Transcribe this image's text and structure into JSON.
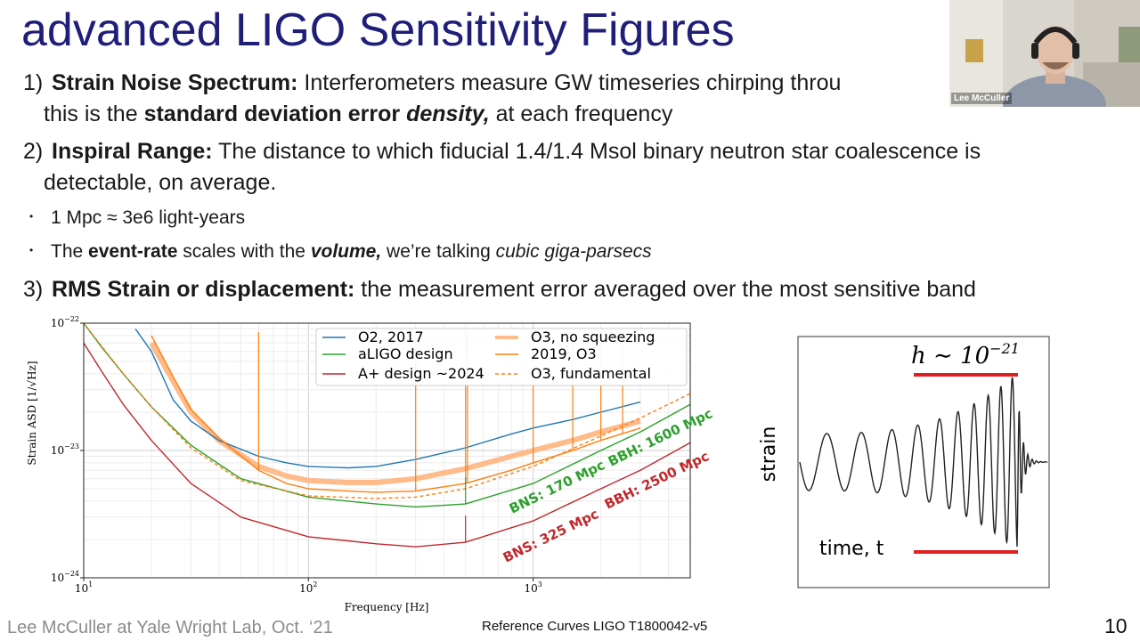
{
  "slide": {
    "title": "advanced LIGO Sensitivity Figures",
    "points": [
      {
        "num": "1)",
        "bold": "Strain Noise Spectrum:",
        "text": " Interferometers measure GW timeseries chirping throu",
        "line2_a": "this is the ",
        "line2_b": "standard deviation error ",
        "line2_c": "density,",
        "line2_d": " at each frequency"
      },
      {
        "num": "2)",
        "bold": "Inspiral Range:",
        "text": " The distance to which fiducial 1.4/1.4 Msol binary neutron star coalescence is",
        "line2": "detectable, on average."
      },
      {
        "num": "3)",
        "bold": "RMS Strain or displacement:",
        "text": " the measurement error averaged over the most sensitive band"
      }
    ],
    "bullets": [
      {
        "text": "1 Mpc ≈ 3e6 light-years"
      },
      {
        "a": "The ",
        "b": "event-rate",
        "c": " scales with the ",
        "d": "volume,",
        "e": " we’re talking ",
        "f": "cubic giga-parsecs"
      }
    ],
    "bullet_glyph": "•",
    "footer_left": "Lee McCuller at Yale Wright Lab, Oct. ‘21",
    "footer_ref": "Reference Curves LIGO T1800042-v5",
    "page_number": "10"
  },
  "webcam": {
    "name": "Lee McCuller"
  },
  "colors": {
    "title": "#1f1f7a",
    "o2": "#1f77b4",
    "design": "#2ca02c",
    "aplus": "#c0282d",
    "o3": "#ff7f0e",
    "o3_nosqz": "#ffbb8a",
    "wave_marker": "#e02020"
  },
  "chart_data": [
    {
      "type": "line",
      "xlabel": "Frequency [Hz]",
      "ylabel": "Strain ASD [1/√Hz]",
      "xscale": "log",
      "yscale": "log",
      "xlim": [
        10,
        5000
      ],
      "ylim": [
        1e-24,
        1e-22
      ],
      "x_ticks": [
        {
          "base": "10",
          "exp": "1"
        },
        {
          "base": "10",
          "exp": "2"
        },
        {
          "base": "10",
          "exp": "3"
        }
      ],
      "y_ticks": [
        {
          "base": "10",
          "exp": "−24"
        },
        {
          "base": "10",
          "exp": "−23"
        },
        {
          "base": "10",
          "exp": "−22"
        }
      ],
      "grid": true,
      "legend_position": "top-right",
      "legend": [
        {
          "label": "O2, 2017",
          "style": "solid",
          "color": "#1f77b4"
        },
        {
          "label": "aLIGO design",
          "style": "solid",
          "color": "#2ca02c"
        },
        {
          "label": "A+ design ~2024",
          "style": "solid",
          "color": "#c0282d"
        },
        {
          "label": "O3, no squeezing",
          "style": "solid",
          "color": "#ffbb8a"
        },
        {
          "label": "2019, O3",
          "style": "solid",
          "color": "#ff7f0e"
        },
        {
          "label": "O3, fundamental",
          "style": "dashed",
          "color": "#ff7f0e"
        }
      ],
      "annotations": [
        {
          "text": "BNS: 170 Mpc",
          "color": "#2ca02c"
        },
        {
          "text": "BBH: 1600 Mpc",
          "color": "#2ca02c"
        },
        {
          "text": "BNS: 325 Mpc",
          "color": "#c0282d"
        },
        {
          "text": "BBH: 2500 Mpc",
          "color": "#c0282d"
        }
      ],
      "series": [
        {
          "name": "O2, 2017",
          "x": [
            17,
            20,
            25,
            30,
            40,
            60,
            80,
            100,
            150,
            200,
            300,
            500,
            800,
            1000,
            1500,
            2000,
            3000
          ],
          "y": [
            9e-23,
            6e-23,
            2.5e-23,
            1.7e-23,
            1.2e-23,
            9e-24,
            8e-24,
            7.5e-24,
            7.3e-24,
            7.5e-24,
            8.5e-24,
            1.05e-23,
            1.35e-23,
            1.5e-23,
            1.75e-23,
            2e-23,
            2.4e-23
          ]
        },
        {
          "name": "aLIGO design",
          "x": [
            10,
            12,
            15,
            20,
            30,
            50,
            100,
            200,
            300,
            500,
            1000,
            2000,
            3000,
            5000
          ],
          "y": [
            1e-22,
            6.5e-23,
            4e-23,
            2.2e-23,
            1.1e-23,
            6e-24,
            4.3e-24,
            3.8e-24,
            3.6e-24,
            3.8e-24,
            5.5e-24,
            1e-23,
            1.4e-23,
            2.3e-23
          ]
        },
        {
          "name": "A+ design ~2024",
          "x": [
            10,
            12,
            15,
            20,
            30,
            50,
            100,
            200,
            300,
            500,
            1000,
            2000,
            3000,
            5000
          ],
          "y": [
            7e-23,
            4.2e-23,
            2.3e-23,
            1.2e-23,
            5.5e-24,
            3e-24,
            2.1e-24,
            1.85e-24,
            1.75e-24,
            1.9e-24,
            2.8e-24,
            5e-24,
            7e-24,
            1.15e-23
          ]
        },
        {
          "name": "O3, no squeezing",
          "x": [
            20,
            25,
            30,
            40,
            60,
            80,
            100,
            150,
            200,
            300,
            500,
            800,
            1000,
            1500,
            2000,
            3000
          ],
          "y": [
            7e-23,
            3.5e-23,
            2e-23,
            1.2e-23,
            7.5e-24,
            6.3e-24,
            5.8e-24,
            5.6e-24,
            5.6e-24,
            6e-24,
            7.2e-24,
            9e-24,
            1e-23,
            1.2e-23,
            1.4e-23,
            1.7e-23
          ]
        },
        {
          "name": "2019, O3",
          "x": [
            20,
            25,
            30,
            40,
            60,
            80,
            100,
            150,
            200,
            300,
            500,
            800,
            1000,
            1500,
            2000,
            3000
          ],
          "y": [
            8e-23,
            3.8e-23,
            2.1e-23,
            1.25e-23,
            7e-24,
            5.5e-24,
            5e-24,
            4.8e-24,
            4.7e-24,
            4.8e-24,
            5.5e-24,
            7e-24,
            8e-24,
            1e-23,
            1.2e-23,
            1.5e-23
          ]
        },
        {
          "name": "O3, fundamental",
          "x": [
            10,
            15,
            20,
            30,
            50,
            100,
            200,
            300,
            500,
            1000,
            2000,
            3000,
            5000
          ],
          "y": [
            1e-22,
            4e-23,
            2.2e-23,
            1.05e-23,
            5.8e-24,
            4.4e-24,
            4.2e-24,
            4.3e-24,
            5e-24,
            7.5e-24,
            1.3e-23,
            1.8e-23,
            2.8e-23
          ]
        }
      ]
    },
    {
      "type": "line",
      "ylabel": "strain",
      "xlabel": "time, t",
      "amplitude_label": "h ∼ 10⁻²¹",
      "amplitude_base": "h ∼ 10",
      "amplitude_exp": "−21",
      "series": [
        {
          "name": "",
          "description_only": false
        }
      ]
    }
  ]
}
